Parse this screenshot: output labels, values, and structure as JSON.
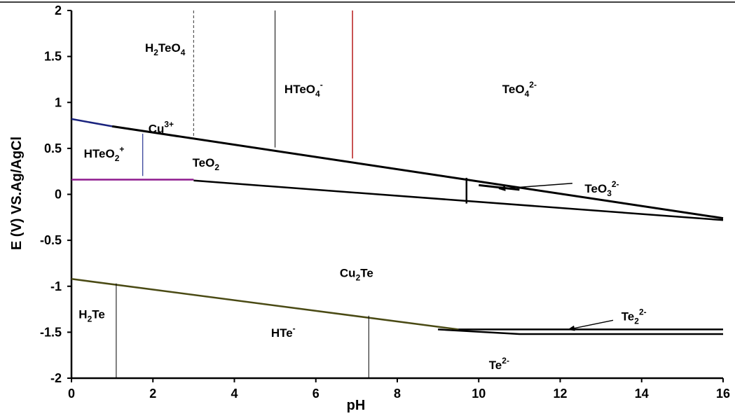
{
  "chart_data": {
    "type": "line",
    "title": "",
    "xlabel": "pH",
    "ylabel": "E (V) VS.Ag/AgCl",
    "xlim": [
      0,
      16
    ],
    "ylim": [
      -2,
      2
    ],
    "x_ticks": [
      "0",
      "2",
      "4",
      "6",
      "8",
      "10",
      "12",
      "14",
      "16"
    ],
    "y_ticks": [
      "2",
      "1.5",
      "1",
      "0.5",
      "0",
      "-0.5",
      "-1",
      "-1.5",
      "-2"
    ],
    "grid": false,
    "legend": "none",
    "boundaries": [
      {
        "id": "cu3-upper-navy",
        "color": "#1a237e",
        "width": 2.5,
        "dash": "",
        "points": [
          [
            0,
            0.82
          ],
          [
            1.0,
            0.74
          ]
        ]
      },
      {
        "id": "upper-main",
        "color": "#000000",
        "width": 3,
        "dash": "",
        "points": [
          [
            1.0,
            0.74
          ],
          [
            16,
            -0.26
          ]
        ]
      },
      {
        "id": "lower-purple",
        "color": "#8e1a8e",
        "width": 2.5,
        "dash": "",
        "points": [
          [
            0,
            0.16
          ],
          [
            3.0,
            0.16
          ]
        ]
      },
      {
        "id": "lower-main",
        "color": "#000000",
        "width": 2.5,
        "dash": "",
        "points": [
          [
            3.0,
            0.15
          ],
          [
            16,
            -0.28
          ]
        ]
      },
      {
        "id": "teo3-segment",
        "color": "#000000",
        "width": 3,
        "dash": "",
        "points": [
          [
            10.0,
            0.1
          ],
          [
            11.0,
            0.05
          ]
        ]
      },
      {
        "id": "hteo2-vertical",
        "color": "#283593",
        "width": 1.2,
        "dash": "",
        "points": [
          [
            1.75,
            0.66
          ],
          [
            1.75,
            0.2
          ]
        ]
      },
      {
        "id": "dashed-vertical-3",
        "color": "#555555",
        "width": 1.2,
        "dash": "4,3",
        "points": [
          [
            3.0,
            2.0
          ],
          [
            3.0,
            0.62
          ]
        ]
      },
      {
        "id": "vertical-5",
        "color": "#000000",
        "width": 1,
        "dash": "",
        "points": [
          [
            5.0,
            2.0
          ],
          [
            5.0,
            0.51
          ]
        ]
      },
      {
        "id": "vertical-6.9-red",
        "color": "#b71c1c",
        "width": 1.5,
        "dash": "",
        "points": [
          [
            6.9,
            2.0
          ],
          [
            6.9,
            0.39
          ]
        ]
      },
      {
        "id": "vertical-9.7",
        "color": "#000000",
        "width": 2.5,
        "dash": "",
        "points": [
          [
            9.7,
            0.18
          ],
          [
            9.7,
            -0.1
          ]
        ]
      },
      {
        "id": "cu2te-lower-olive",
        "color": "#4a4a14",
        "width": 2.5,
        "dash": "",
        "points": [
          [
            0,
            -0.92
          ],
          [
            9.5,
            -1.47
          ]
        ]
      },
      {
        "id": "te-lower-step",
        "color": "#000000",
        "width": 2.5,
        "dash": "",
        "points": [
          [
            9.0,
            -1.47
          ],
          [
            11.0,
            -1.52
          ],
          [
            16,
            -1.52
          ]
        ]
      },
      {
        "id": "te2-line",
        "color": "#000000",
        "width": 2.5,
        "dash": "",
        "points": [
          [
            9.5,
            -1.47
          ],
          [
            16,
            -1.47
          ]
        ]
      },
      {
        "id": "vertical-1.1",
        "color": "#000000",
        "width": 1,
        "dash": "",
        "points": [
          [
            1.1,
            -0.97
          ],
          [
            1.1,
            -2.0
          ]
        ]
      },
      {
        "id": "vertical-7.3",
        "color": "#000000",
        "width": 1,
        "dash": "",
        "points": [
          [
            7.3,
            -1.32
          ],
          [
            7.3,
            -2.0
          ]
        ]
      }
    ],
    "arrows": [
      {
        "id": "teo3-arrow",
        "from": [
          12.3,
          0.12
        ],
        "to": [
          10.5,
          0.06
        ]
      },
      {
        "id": "te2-arrow",
        "from": [
          13.3,
          -1.37
        ],
        "to": [
          12.2,
          -1.47
        ]
      }
    ],
    "regions": [
      {
        "id": "h2teo4",
        "x": 2.3,
        "y": 1.55,
        "anchor": "middle",
        "parts": [
          [
            "H",
            ""
          ],
          [
            "2",
            "sub"
          ],
          [
            "TeO",
            ""
          ],
          [
            "4",
            "sub"
          ]
        ]
      },
      {
        "id": "hteo4",
        "x": 5.7,
        "y": 1.1,
        "anchor": "middle",
        "parts": [
          [
            "HTeO",
            ""
          ],
          [
            "4",
            "sub"
          ],
          [
            "-",
            "sup"
          ]
        ]
      },
      {
        "id": "teo4",
        "x": 11.0,
        "y": 1.1,
        "anchor": "middle",
        "parts": [
          [
            "TeO",
            ""
          ],
          [
            "4",
            "sub"
          ],
          [
            "2-",
            "sup"
          ]
        ]
      },
      {
        "id": "cu3",
        "x": 2.2,
        "y": 0.67,
        "anchor": "middle",
        "parts": [
          [
            "Cu",
            ""
          ],
          [
            "3+",
            "sup"
          ]
        ]
      },
      {
        "id": "hteo2",
        "x": 0.8,
        "y": 0.4,
        "anchor": "middle",
        "parts": [
          [
            "HTeO",
            ""
          ],
          [
            "2",
            "sub"
          ],
          [
            "+",
            "sup"
          ]
        ]
      },
      {
        "id": "teo2",
        "x": 3.3,
        "y": 0.3,
        "anchor": "middle",
        "parts": [
          [
            "TeO",
            ""
          ],
          [
            "2",
            "sub"
          ]
        ]
      },
      {
        "id": "teo3",
        "x": 12.6,
        "y": 0.02,
        "anchor": "start",
        "parts": [
          [
            "TeO",
            ""
          ],
          [
            "3",
            "sub"
          ],
          [
            "2-",
            "sup"
          ]
        ]
      },
      {
        "id": "cu2te",
        "x": 7.0,
        "y": -0.9,
        "anchor": "middle",
        "parts": [
          [
            "Cu",
            ""
          ],
          [
            "2",
            "sub"
          ],
          [
            "Te",
            ""
          ]
        ]
      },
      {
        "id": "h2te",
        "x": 0.5,
        "y": -1.35,
        "anchor": "middle",
        "parts": [
          [
            "H",
            ""
          ],
          [
            "2",
            "sub"
          ],
          [
            "Te",
            ""
          ]
        ]
      },
      {
        "id": "hte",
        "x": 5.2,
        "y": -1.55,
        "anchor": "middle",
        "parts": [
          [
            "HTe",
            ""
          ],
          [
            "-",
            "sup"
          ]
        ]
      },
      {
        "id": "te2",
        "x": 13.5,
        "y": -1.37,
        "anchor": "start",
        "parts": [
          [
            "Te",
            ""
          ],
          [
            "2",
            "sub"
          ],
          [
            "2-",
            "sup"
          ]
        ]
      },
      {
        "id": "te",
        "x": 10.5,
        "y": -1.9,
        "anchor": "middle",
        "parts": [
          [
            "Te",
            ""
          ],
          [
            "2-",
            "sup"
          ]
        ]
      }
    ]
  }
}
